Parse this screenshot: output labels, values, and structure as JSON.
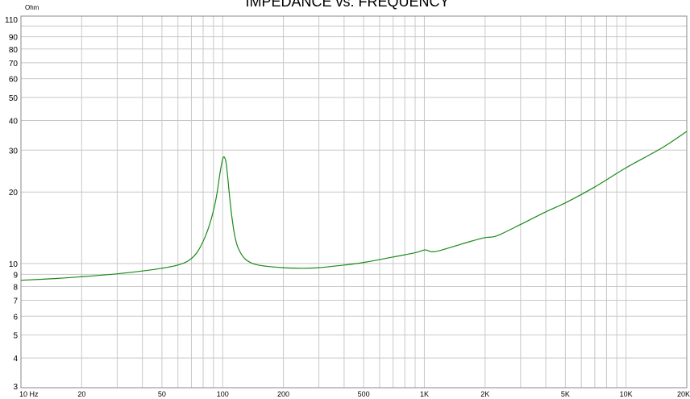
{
  "chart_data": {
    "type": "line",
    "title": "IMPEDANCE vs. FREQUENCY",
    "ylabel": "Ohm",
    "xscale": "log",
    "yscale": "log",
    "xlim": [
      10,
      20000
    ],
    "ylim": [
      3,
      110
    ],
    "grid": true,
    "x_ticks": [
      {
        "value": 10,
        "label": "10 Hz"
      },
      {
        "value": 20,
        "label": "20"
      },
      {
        "value": 50,
        "label": "50"
      },
      {
        "value": 100,
        "label": "100"
      },
      {
        "value": 200,
        "label": "200"
      },
      {
        "value": 500,
        "label": "500"
      },
      {
        "value": 1000,
        "label": "1K"
      },
      {
        "value": 2000,
        "label": "2K"
      },
      {
        "value": 5000,
        "label": "5K"
      },
      {
        "value": 10000,
        "label": "10K"
      },
      {
        "value": 20000,
        "label": "20K"
      }
    ],
    "y_ticks": [
      {
        "value": 3,
        "label": "3"
      },
      {
        "value": 4,
        "label": "4"
      },
      {
        "value": 5,
        "label": "5"
      },
      {
        "value": 6,
        "label": "6"
      },
      {
        "value": 7,
        "label": "7"
      },
      {
        "value": 8,
        "label": "8"
      },
      {
        "value": 9,
        "label": "9"
      },
      {
        "value": 10,
        "label": "10"
      },
      {
        "value": 20,
        "label": "20"
      },
      {
        "value": 30,
        "label": "30"
      },
      {
        "value": 40,
        "label": "40"
      },
      {
        "value": 50,
        "label": "50"
      },
      {
        "value": 60,
        "label": "60"
      },
      {
        "value": 70,
        "label": "70"
      },
      {
        "value": 80,
        "label": "80"
      },
      {
        "value": 90,
        "label": "90"
      },
      {
        "value": 110,
        "label": "110"
      }
    ],
    "series": [
      {
        "color": "#1a8a1a",
        "x": [
          10,
          15,
          20,
          30,
          40,
          50,
          60,
          68,
          75,
          82,
          88,
          93,
          97,
          100,
          102,
          104,
          106,
          108,
          111,
          115,
          120,
          130,
          150,
          200,
          250,
          300,
          400,
          500,
          700,
          900,
          1000,
          1050,
          1100,
          1200,
          1400,
          1700,
          2000,
          2200,
          2400,
          3000,
          4000,
          5000,
          7000,
          10000,
          15000,
          20000
        ],
        "y": [
          8.5,
          8.65,
          8.8,
          9.05,
          9.3,
          9.55,
          9.85,
          10.3,
          11.2,
          13.0,
          15.5,
          19.0,
          24.0,
          27.5,
          28.0,
          26.5,
          23.0,
          19.5,
          15.8,
          13.0,
          11.5,
          10.4,
          9.85,
          9.6,
          9.55,
          9.6,
          9.85,
          10.1,
          10.65,
          11.1,
          11.4,
          11.3,
          11.2,
          11.35,
          11.8,
          12.4,
          12.85,
          12.95,
          13.3,
          14.6,
          16.5,
          18.0,
          21.0,
          25.3,
          30.6,
          36.0
        ]
      }
    ]
  }
}
